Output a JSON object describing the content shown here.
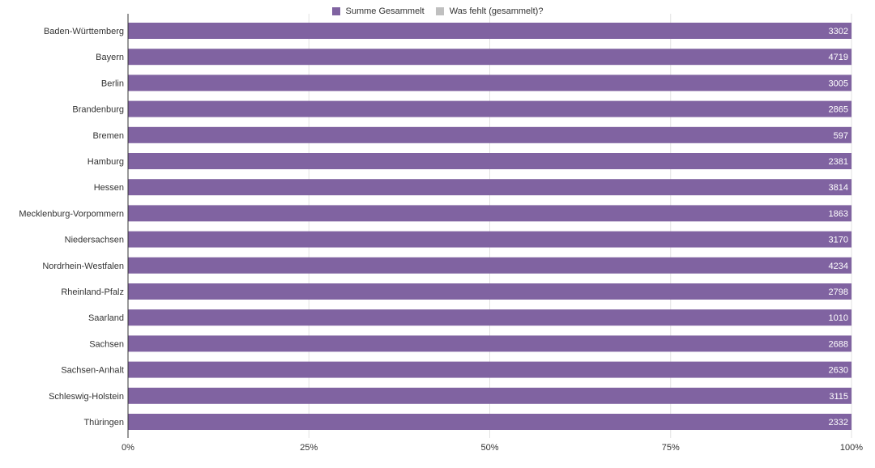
{
  "colors": {
    "summe": "#8063a1",
    "fehlt": "#c0c0c0",
    "grid": "#e2e2e2",
    "axis": "#333333",
    "text": "#333333",
    "label": "#ffffff"
  },
  "chart_data": {
    "type": "bar",
    "orientation": "horizontal",
    "stacked_percent": true,
    "categories": [
      "Baden-Württemberg",
      "Bayern",
      "Berlin",
      "Brandenburg",
      "Bremen",
      "Hamburg",
      "Hessen",
      "Mecklenburg-Vorpommern",
      "Niedersachsen",
      "Nordrhein-Westfalen",
      "Rheinland-Pfalz",
      "Saarland",
      "Sachsen",
      "Sachsen-Anhalt",
      "Schleswig-Holstein",
      "Thüringen"
    ],
    "series": [
      {
        "name": "Summe Gesammelt",
        "values": [
          3302,
          4719,
          3005,
          2865,
          597,
          2381,
          3814,
          1863,
          3170,
          4234,
          2798,
          1010,
          2688,
          2630,
          3115,
          2332
        ]
      },
      {
        "name": "Was fehlt (gesammelt)?",
        "values": [
          0,
          0,
          0,
          0,
          0,
          0,
          0,
          0,
          0,
          0,
          0,
          0,
          0,
          0,
          0,
          0
        ]
      }
    ],
    "xticks": [
      "0%",
      "25%",
      "50%",
      "75%",
      "100%"
    ],
    "xlim": [
      0,
      100
    ],
    "grid": true,
    "legend_position": "top-center",
    "title": "",
    "xlabel": "",
    "ylabel": ""
  }
}
